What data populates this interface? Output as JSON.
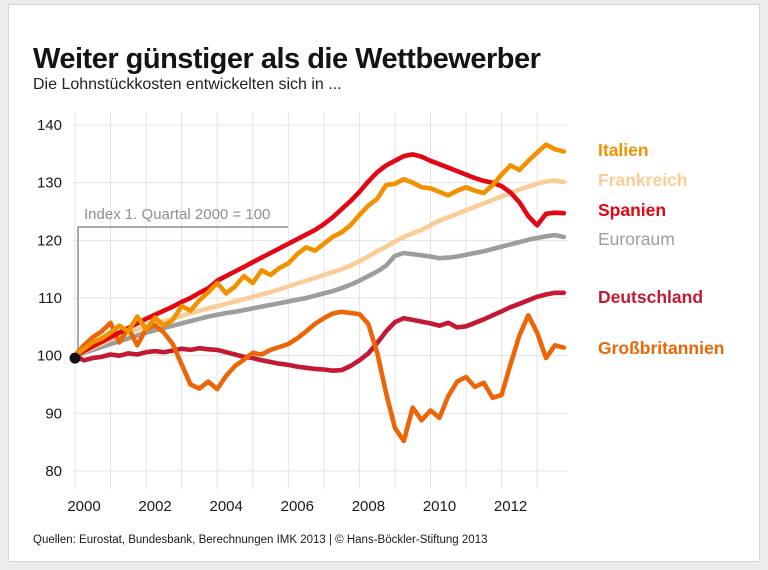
{
  "page": {
    "title": "Weiter günstiger als die Wettbewerber",
    "subtitle": "Die Lohnstückkosten entwickelten sich in ...",
    "source_line": "Quellen: Eurostat, Bundesbank, Berechnungen IMK 2013 | © Hans-Böckler-Stiftung 2013"
  },
  "legend": {
    "items": [
      {
        "label": "Italien",
        "color": "#F29100",
        "bold": true
      },
      {
        "label": "Frankreich",
        "color": "#FACD96",
        "bold": true
      },
      {
        "label": "Spanien",
        "color": "#E30613",
        "bold": true
      },
      {
        "label": "Euroraum",
        "color": "#9D9D9C",
        "bold": false
      },
      {
        "label": "Deutschland",
        "color": "#C41934",
        "bold": true
      },
      {
        "label": "Großbritannien",
        "color": "#EC6608",
        "bold": true
      }
    ]
  },
  "chart_data": {
    "type": "line",
    "title": "Weiter günstiger als die Wettbewerber",
    "subtitle": "Die Lohnstückkosten entwickelten sich in ...",
    "annotation": "Index 1. Quartal 2000 = 100",
    "x_unit": "years (quarterly data)",
    "x_start": 2000,
    "x_step": 0.25,
    "x_end": 2013.75,
    "x_gridline_years": [
      2000,
      2001,
      2002,
      2003,
      2004,
      2005,
      2006,
      2007,
      2008,
      2009,
      2010,
      2011,
      2012,
      2013
    ],
    "x_tick_labels": [
      "2000",
      "2002",
      "2004",
      "2006",
      "2008",
      "2010",
      "2012"
    ],
    "x_tick_years": [
      2000,
      2002,
      2004,
      2006,
      2008,
      2010,
      2012
    ],
    "ylim": [
      80,
      140
    ],
    "y_ticks": [
      80,
      90,
      100,
      110,
      120,
      130,
      140
    ],
    "grid": true,
    "legend_position": "right",
    "start_marker": {
      "x": 2000,
      "y": 100
    },
    "series": [
      {
        "name": "Euroraum",
        "color": "#9D9D9C",
        "values": [
          100,
          100.5,
          101.0,
          101.5,
          102.0,
          102.5,
          103.0,
          103.5,
          104.0,
          104.4,
          104.8,
          105.2,
          105.6,
          106.0,
          106.4,
          106.8,
          107.1,
          107.4,
          107.6,
          107.9,
          108.2,
          108.5,
          108.8,
          109.1,
          109.4,
          109.7,
          110.0,
          110.4,
          110.8,
          111.2,
          111.7,
          112.3,
          113.0,
          113.8,
          114.6,
          115.6,
          117.3,
          117.8,
          117.6,
          117.4,
          117.2,
          116.9,
          117.0,
          117.2,
          117.5,
          117.8,
          118.1,
          118.5,
          118.9,
          119.3,
          119.7,
          120.1,
          120.4,
          120.7,
          120.9,
          120.6
        ]
      },
      {
        "name": "Frankreich",
        "color": "#FACD96",
        "values": [
          100,
          100.7,
          101.4,
          102.1,
          102.8,
          103.4,
          104.0,
          104.5,
          105.0,
          105.5,
          106.0,
          106.4,
          106.9,
          107.4,
          107.8,
          108.2,
          108.6,
          109.0,
          109.4,
          109.8,
          110.2,
          110.6,
          111.0,
          111.5,
          112.0,
          112.5,
          113.0,
          113.5,
          114.0,
          114.5,
          115.0,
          115.6,
          116.4,
          117.2,
          118.1,
          118.9,
          119.8,
          120.6,
          121.2,
          121.8,
          122.6,
          123.4,
          124.0,
          124.6,
          125.2,
          125.8,
          126.4,
          127.0,
          127.6,
          128.2,
          128.8,
          129.3,
          129.8,
          130.2,
          130.4,
          130.1
        ]
      },
      {
        "name": "Deutschland",
        "color": "#C41934",
        "values": [
          100,
          99.2,
          99.6,
          99.8,
          100.2,
          100.0,
          100.4,
          100.2,
          100.6,
          100.8,
          100.6,
          100.9,
          101.2,
          101.0,
          101.3,
          101.1,
          101.0,
          100.6,
          100.2,
          99.8,
          99.6,
          99.2,
          98.9,
          98.6,
          98.4,
          98.1,
          97.9,
          97.7,
          97.6,
          97.4,
          97.5,
          98.2,
          99.2,
          100.4,
          102.2,
          104.2,
          105.8,
          106.5,
          106.2,
          105.9,
          105.6,
          105.2,
          105.7,
          104.9,
          105.1,
          105.7,
          106.3,
          107.0,
          107.7,
          108.4,
          109.0,
          109.6,
          110.2,
          110.6,
          110.9,
          110.9
        ]
      },
      {
        "name": "Großbritannien",
        "color": "#EC6608",
        "values": [
          100,
          101.8,
          103.2,
          104.2,
          105.7,
          102.3,
          104.8,
          101.8,
          104.6,
          105.3,
          104.0,
          102.0,
          98.5,
          95.0,
          94.3,
          95.5,
          94.2,
          96.5,
          98.2,
          99.3,
          100.5,
          100.2,
          101.0,
          101.5,
          102.0,
          103.0,
          104.2,
          105.5,
          106.5,
          107.3,
          107.6,
          107.4,
          107.2,
          105.5,
          100.5,
          93.5,
          87.5,
          85.2,
          91.0,
          88.8,
          90.5,
          89.2,
          93.0,
          95.5,
          96.3,
          94.6,
          95.3,
          92.7,
          93.2,
          98.5,
          103.5,
          107.0,
          104.0,
          99.6,
          101.8,
          101.4
        ]
      },
      {
        "name": "Spanien",
        "color": "#E30613",
        "values": [
          100,
          100.8,
          101.6,
          102.4,
          103.2,
          104.0,
          104.8,
          105.6,
          106.4,
          107.1,
          107.8,
          108.5,
          109.3,
          110.0,
          110.9,
          111.7,
          113.0,
          113.8,
          114.6,
          115.4,
          116.2,
          117.0,
          117.8,
          118.6,
          119.4,
          120.2,
          121.0,
          121.8,
          122.8,
          124.0,
          125.4,
          126.8,
          128.4,
          130.2,
          131.8,
          133.0,
          133.8,
          134.6,
          134.9,
          134.5,
          133.8,
          133.2,
          132.6,
          132.0,
          131.4,
          130.8,
          130.3,
          130.0,
          129.4,
          128.3,
          126.6,
          124.2,
          122.6,
          124.6,
          124.8,
          124.7
        ]
      },
      {
        "name": "Italien",
        "color": "#F29100",
        "values": [
          100,
          101.2,
          102.3,
          103.0,
          104.0,
          105.2,
          104.2,
          106.8,
          104.6,
          106.6,
          105.2,
          106.2,
          108.6,
          107.8,
          109.6,
          111.0,
          112.6,
          110.8,
          112.0,
          113.8,
          112.6,
          114.8,
          114.0,
          115.2,
          116.0,
          117.6,
          118.8,
          118.2,
          119.4,
          120.6,
          121.4,
          122.6,
          124.4,
          126.0,
          127.2,
          129.6,
          129.8,
          130.6,
          130.0,
          129.2,
          129.0,
          128.4,
          127.8,
          128.6,
          129.2,
          128.6,
          128.2,
          129.6,
          131.4,
          133.0,
          132.2,
          133.8,
          135.2,
          136.6,
          135.8,
          135.4
        ]
      }
    ]
  }
}
